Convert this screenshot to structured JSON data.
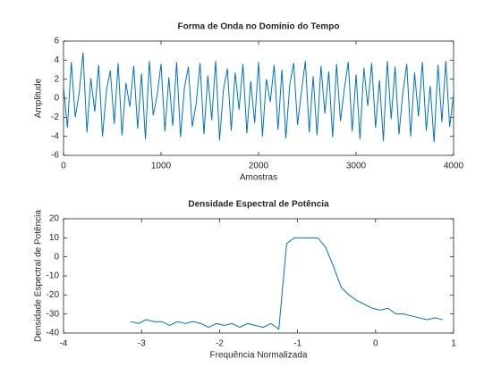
{
  "chart_data": [
    {
      "type": "line",
      "title": "Forma de Onda no Domínio do Tempo",
      "xlabel": "Amostras",
      "ylabel": "Amplitude",
      "xlim": [
        0,
        4000
      ],
      "xticks": [
        0,
        1000,
        2000,
        3000,
        4000
      ],
      "ylim": [
        -6,
        6
      ],
      "yticks": [
        -6,
        -4,
        -2,
        0,
        2,
        4,
        6
      ],
      "series": [
        {
          "color": "#0072bd",
          "x": [
            0,
            40,
            80,
            120,
            160,
            200,
            240,
            280,
            320,
            360,
            400,
            440,
            480,
            520,
            560,
            600,
            640,
            680,
            720,
            760,
            800,
            840,
            880,
            920,
            960,
            1000,
            1040,
            1080,
            1120,
            1160,
            1200,
            1240,
            1280,
            1320,
            1360,
            1400,
            1440,
            1480,
            1520,
            1560,
            1600,
            1640,
            1680,
            1720,
            1760,
            1800,
            1840,
            1880,
            1920,
            1960,
            2000,
            2040,
            2080,
            2120,
            2160,
            2200,
            2240,
            2280,
            2320,
            2360,
            2400,
            2440,
            2480,
            2520,
            2560,
            2600,
            2640,
            2680,
            2720,
            2760,
            2800,
            2840,
            2880,
            2920,
            2960,
            3000,
            3040,
            3080,
            3120,
            3160,
            3200,
            3240,
            3280,
            3320,
            3360,
            3400,
            3440,
            3480,
            3520,
            3560,
            3600,
            3640,
            3680,
            3720,
            3760,
            3800,
            3840,
            3880,
            3920,
            3960,
            4000
          ],
          "values": [
            1.2,
            -3.1,
            3.8,
            -2.0,
            0.5,
            4.8,
            -3.6,
            2.1,
            -1.4,
            3.5,
            -4.0,
            0.8,
            2.9,
            -2.7,
            3.7,
            -3.9,
            1.6,
            -0.9,
            3.4,
            -3.2,
            2.6,
            -4.3,
            3.9,
            -1.8,
            0.3,
            3.6,
            -3.5,
            2.2,
            -2.9,
            3.8,
            -4.1,
            1.1,
            3.3,
            -3.0,
            -0.6,
            3.7,
            -3.8,
            2.4,
            -2.3,
            3.9,
            -4.4,
            0.9,
            3.1,
            -3.4,
            2.7,
            -1.2,
            3.6,
            -3.7,
            1.8,
            -2.6,
            3.8,
            -4.0,
            2.0,
            -0.4,
            3.5,
            -3.3,
            3.0,
            -4.2,
            1.4,
            3.7,
            -2.8,
            0.7,
            3.9,
            -3.6,
            2.3,
            -3.9,
            3.4,
            -1.6,
            2.8,
            -4.1,
            3.6,
            -2.4,
            1.0,
            3.8,
            -3.5,
            2.5,
            -4.3,
            3.2,
            -0.8,
            3.7,
            -3.1,
            1.9,
            -4.5,
            3.9,
            -2.2,
            3.3,
            -3.8,
            0.6,
            3.6,
            -4.0,
            2.7,
            -1.9,
            3.8,
            -3.4,
            1.3,
            -4.6,
            3.5,
            -2.5,
            3.9,
            -3.0,
            0.4
          ]
        }
      ]
    },
    {
      "type": "line",
      "title": "Densidade Espectral de Potência",
      "xlabel": "Frequência Normalizada",
      "ylabel": "Densidade Espectral de Potência",
      "xlim": [
        -4,
        1
      ],
      "xticks": [
        -4,
        -3,
        -2,
        -1,
        0,
        1
      ],
      "ylim": [
        -40,
        20
      ],
      "yticks": [
        -40,
        -30,
        -20,
        -10,
        0,
        10,
        20
      ],
      "series": [
        {
          "color": "#0072bd",
          "x": [
            -3.14,
            -3.04,
            -2.94,
            -2.84,
            -2.74,
            -2.64,
            -2.54,
            -2.44,
            -2.34,
            -2.24,
            -2.14,
            -2.04,
            -1.94,
            -1.84,
            -1.74,
            -1.64,
            -1.54,
            -1.44,
            -1.34,
            -1.24,
            -1.14,
            -1.04,
            -0.94,
            -0.84,
            -0.74,
            -0.64,
            -0.54,
            -0.44,
            -0.34,
            -0.24,
            -0.14,
            -0.04,
            0.06,
            0.16,
            0.26,
            0.36,
            0.46,
            0.56,
            0.66,
            0.76,
            0.86
          ],
          "values": [
            -34,
            -35,
            -33,
            -34,
            -34,
            -36,
            -34,
            -35,
            -34,
            -35,
            -37,
            -35,
            -36,
            -35,
            -37,
            -35,
            -36,
            -37,
            -35,
            -38,
            7,
            10,
            10,
            10,
            10,
            5,
            -5,
            -16,
            -20,
            -23,
            -25,
            -27,
            -28,
            -27,
            -30,
            -30,
            -31,
            -32,
            -33,
            -32,
            -33
          ]
        }
      ]
    }
  ]
}
